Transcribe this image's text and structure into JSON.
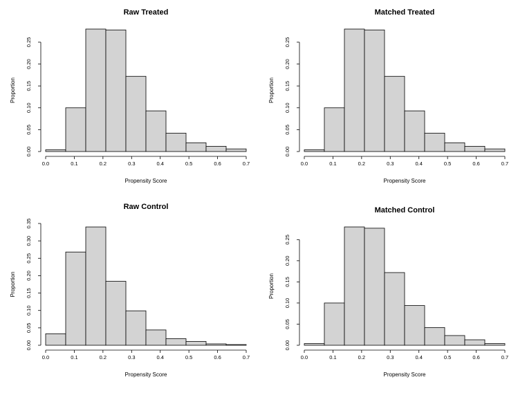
{
  "chart_data": [
    {
      "type": "bar",
      "title": "Raw Treated",
      "xlabel": "Propensity Score",
      "ylabel": "Proportion",
      "bin_edges": [
        0.0,
        0.07,
        0.14,
        0.21,
        0.28,
        0.35,
        0.42,
        0.49,
        0.56,
        0.63,
        0.7
      ],
      "values": [
        0.004,
        0.1,
        0.28,
        0.278,
        0.172,
        0.093,
        0.042,
        0.02,
        0.012,
        0.006
      ],
      "xlim": [
        0,
        0.7
      ],
      "ylim": [
        0,
        0.28
      ],
      "xticks": [
        "0.0",
        "0.1",
        "0.2",
        "0.3",
        "0.4",
        "0.5",
        "0.6",
        "0.7"
      ],
      "yticks": [
        "0.00",
        "0.05",
        "0.10",
        "0.15",
        "0.20",
        "0.25"
      ]
    },
    {
      "type": "bar",
      "title": "Matched Treated",
      "xlabel": "Propensity Score",
      "ylabel": "Proportion",
      "bin_edges": [
        0.0,
        0.07,
        0.14,
        0.21,
        0.28,
        0.35,
        0.42,
        0.49,
        0.56,
        0.63,
        0.7
      ],
      "values": [
        0.004,
        0.1,
        0.28,
        0.278,
        0.172,
        0.093,
        0.042,
        0.02,
        0.012,
        0.006
      ],
      "xlim": [
        0,
        0.7
      ],
      "ylim": [
        0,
        0.28
      ],
      "xticks": [
        "0.0",
        "0.1",
        "0.2",
        "0.3",
        "0.4",
        "0.5",
        "0.6",
        "0.7"
      ],
      "yticks": [
        "0.00",
        "0.05",
        "0.10",
        "0.15",
        "0.20",
        "0.25"
      ]
    },
    {
      "type": "bar",
      "title": "Raw Control",
      "xlabel": "Propensity Score",
      "ylabel": "Proportion",
      "bin_edges": [
        0.0,
        0.07,
        0.14,
        0.21,
        0.28,
        0.35,
        0.42,
        0.49,
        0.56,
        0.63,
        0.7
      ],
      "values": [
        0.033,
        0.268,
        0.34,
        0.184,
        0.099,
        0.044,
        0.019,
        0.011,
        0.004,
        0.002
      ],
      "xlim": [
        0,
        0.7
      ],
      "ylim": [
        0,
        0.35
      ],
      "xticks": [
        "0.0",
        "0.1",
        "0.2",
        "0.3",
        "0.4",
        "0.5",
        "0.6",
        "0.7"
      ],
      "yticks": [
        "0.00",
        "0.05",
        "0.10",
        "0.15",
        "0.20",
        "0.25",
        "0.30",
        "0.35"
      ]
    },
    {
      "type": "bar",
      "title": "Matched Control",
      "xlabel": "Propensity Score",
      "ylabel": "Proportion",
      "bin_edges": [
        0.0,
        0.07,
        0.14,
        0.21,
        0.28,
        0.35,
        0.42,
        0.49,
        0.56,
        0.63,
        0.7
      ],
      "values": [
        0.004,
        0.1,
        0.28,
        0.277,
        0.172,
        0.094,
        0.042,
        0.023,
        0.013,
        0.004
      ],
      "xlim": [
        0,
        0.7
      ],
      "ylim": [
        0,
        0.28
      ],
      "xticks": [
        "0.0",
        "0.1",
        "0.2",
        "0.3",
        "0.4",
        "0.5",
        "0.6",
        "0.7"
      ],
      "yticks": [
        "0.00",
        "0.05",
        "0.10",
        "0.15",
        "0.20",
        "0.25"
      ]
    }
  ]
}
